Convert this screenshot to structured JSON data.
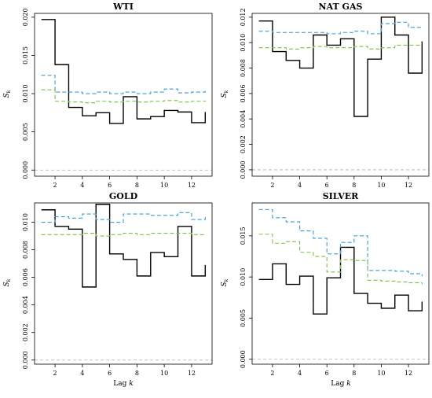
{
  "chart_data": [
    {
      "type": "line",
      "title": "WTI",
      "xlabel": "",
      "ylabel": "S_k",
      "xlim": [
        0.5,
        13.5
      ],
      "ylim": [
        -0.0008,
        0.0205
      ],
      "xticks": [
        2,
        4,
        6,
        8,
        10,
        12
      ],
      "yticks": [
        0.0,
        0.005,
        0.01,
        0.015,
        0.02
      ],
      "ytick_labels": [
        "0.000",
        "0.005",
        "0.010",
        "0.015",
        "0.020"
      ],
      "x": [
        1,
        2,
        3,
        4,
        5,
        6,
        7,
        8,
        9,
        10,
        11,
        12,
        13
      ],
      "series": [
        {
          "style": "step-solid",
          "color": "#000000",
          "values": [
            0.0197,
            0.0138,
            0.0082,
            0.0071,
            0.0075,
            0.0061,
            0.0096,
            0.0067,
            0.007,
            0.0078,
            0.0076,
            0.0062,
            0.0076
          ]
        },
        {
          "style": "step-dashed",
          "color": "#3a9ad9",
          "values": [
            0.0124,
            0.0102,
            0.0102,
            0.01,
            0.0102,
            0.01,
            0.0102,
            0.01,
            0.0102,
            0.0106,
            0.0101,
            0.0102,
            0.0106
          ]
        },
        {
          "style": "step-dashed",
          "color": "#7bc143",
          "values": [
            0.0105,
            0.009,
            0.0089,
            0.0088,
            0.009,
            0.0089,
            0.009,
            0.0089,
            0.009,
            0.0091,
            0.0089,
            0.009,
            0.0091
          ]
        }
      ],
      "hline": 0.0
    },
    {
      "type": "line",
      "title": "NAT GAS",
      "xlabel": "",
      "ylabel": "S_k",
      "xlim": [
        0.5,
        13.5
      ],
      "ylim": [
        -0.0005,
        0.0123
      ],
      "xticks": [
        2,
        4,
        6,
        8,
        10,
        12
      ],
      "yticks": [
        0.0,
        0.002,
        0.004,
        0.006,
        0.008,
        0.01,
        0.012
      ],
      "ytick_labels": [
        "0.000",
        "0.002",
        "0.004",
        "0.006",
        "0.008",
        "0.010",
        "0.012"
      ],
      "x": [
        1,
        2,
        3,
        4,
        5,
        6,
        7,
        8,
        9,
        10,
        11,
        12,
        13
      ],
      "series": [
        {
          "style": "step-solid",
          "color": "#000000",
          "values": [
            0.0117,
            0.0093,
            0.0086,
            0.008,
            0.0106,
            0.0098,
            0.0103,
            0.0042,
            0.0087,
            0.012,
            0.0106,
            0.0076,
            0.0101
          ]
        },
        {
          "style": "step-dashed",
          "color": "#3a9ad9",
          "values": [
            0.0109,
            0.0108,
            0.0108,
            0.0108,
            0.0108,
            0.0107,
            0.0108,
            0.0109,
            0.0107,
            0.0115,
            0.0116,
            0.0112,
            0.0112
          ]
        },
        {
          "style": "step-dashed",
          "color": "#7bc143",
          "values": [
            0.0096,
            0.0096,
            0.0095,
            0.0096,
            0.0097,
            0.0096,
            0.0096,
            0.0097,
            0.0095,
            0.0096,
            0.0098,
            0.0098,
            0.0098
          ]
        }
      ],
      "hline": 0.0
    },
    {
      "type": "line",
      "title": "GOLD",
      "xlabel": "",
      "ylabel": "S_k",
      "xlim": [
        0.5,
        13.5
      ],
      "ylim": [
        -0.0003,
        0.0114
      ],
      "xticks": [
        2,
        4,
        6,
        8,
        10,
        12
      ],
      "yticks": [
        0.0,
        0.002,
        0.004,
        0.006,
        0.008,
        0.01
      ],
      "ytick_labels": [
        "0.000",
        "0.002",
        "0.004",
        "0.006",
        "0.008",
        "0.010"
      ],
      "x": [
        1,
        2,
        3,
        4,
        5,
        6,
        7,
        8,
        9,
        10,
        11,
        12,
        13
      ],
      "series": [
        {
          "style": "step-solid",
          "color": "#000000",
          "values": [
            0.0109,
            0.0097,
            0.0095,
            0.0053,
            0.0113,
            0.0077,
            0.0073,
            0.0061,
            0.0078,
            0.0075,
            0.0097,
            0.0061,
            0.0069
          ]
        },
        {
          "style": "step-dashed",
          "color": "#3a9ad9",
          "values": [
            0.01,
            0.0104,
            0.0103,
            0.0106,
            0.0102,
            0.01,
            0.0106,
            0.0106,
            0.0105,
            0.0105,
            0.0107,
            0.0102,
            0.0104
          ]
        },
        {
          "style": "step-dashed",
          "color": "#7bc143",
          "values": [
            0.0091,
            0.0091,
            0.0091,
            0.0092,
            0.009,
            0.0091,
            0.0092,
            0.0091,
            0.0092,
            0.0092,
            0.0092,
            0.0091,
            0.0091
          ]
        }
      ],
      "hline": 0.0
    },
    {
      "type": "line",
      "title": "SILVER",
      "xlabel": "Lag k",
      "ylabel": "S_k",
      "xlim": [
        0.5,
        13.5
      ],
      "ylim": [
        -0.0006,
        0.019
      ],
      "xticks": [
        2,
        4,
        6,
        8,
        10,
        12
      ],
      "yticks": [
        0.0,
        0.005,
        0.01,
        0.015
      ],
      "ytick_labels": [
        "0.000",
        "0.005",
        "0.010",
        "0.015"
      ],
      "x": [
        1,
        2,
        3,
        4,
        5,
        6,
        7,
        8,
        9,
        10,
        11,
        12,
        13
      ],
      "series": [
        {
          "style": "step-solid",
          "color": "#000000",
          "values": [
            0.0097,
            0.0116,
            0.0091,
            0.0101,
            0.0055,
            0.0099,
            0.0136,
            0.008,
            0.0068,
            0.0062,
            0.0078,
            0.0059,
            0.007
          ]
        },
        {
          "style": "step-dashed",
          "color": "#3a9ad9",
          "values": [
            0.0182,
            0.0172,
            0.0167,
            0.0156,
            0.0147,
            0.0128,
            0.0142,
            0.015,
            0.0108,
            0.0108,
            0.0107,
            0.0104,
            0.0101
          ]
        },
        {
          "style": "step-dashed",
          "color": "#7bc143",
          "values": [
            0.0152,
            0.0141,
            0.0143,
            0.013,
            0.0125,
            0.0106,
            0.0121,
            0.012,
            0.0096,
            0.0095,
            0.0094,
            0.0093,
            0.0091
          ]
        }
      ],
      "hline": 0.0
    }
  ],
  "colors": {
    "actual": "#000000",
    "upper_band": "#3a9ad9",
    "lower_band": "#7bc143",
    "zero_line": "#b0b0b0"
  }
}
